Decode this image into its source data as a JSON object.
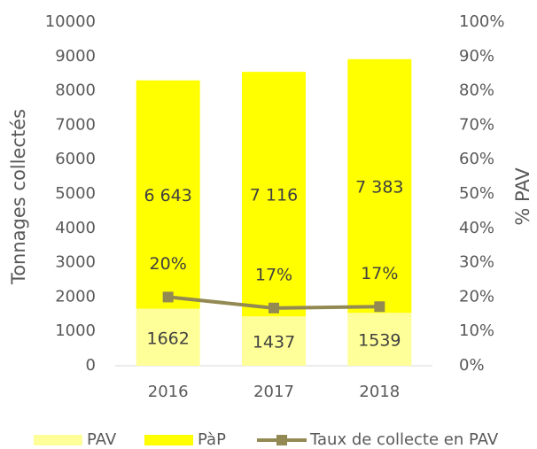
{
  "chart_data": {
    "type": "stacked_bar_line",
    "categories": [
      "2016",
      "2017",
      "2018"
    ],
    "series": [
      {
        "name": "PAV",
        "color": "#ffff99",
        "values": [
          1662,
          1437,
          1539
        ]
      },
      {
        "name": "PàP",
        "color": "#ffff00",
        "values": [
          6643,
          7116,
          7383
        ],
        "value_labels": [
          "6 643",
          "7 116",
          "7 383"
        ]
      },
      {
        "name": "Taux de collecte en PAV",
        "color": "#938953",
        "axis": "y2",
        "type": "line",
        "values": [
          20,
          16.8,
          17.2
        ],
        "value_labels": [
          "20%",
          "17%",
          "17%"
        ]
      }
    ],
    "ylabel": "Tonnages  collectés",
    "y2label": "% PAV",
    "ylim": [
      0,
      10000
    ],
    "yticks": [
      0,
      1000,
      2000,
      3000,
      4000,
      5000,
      6000,
      7000,
      8000,
      9000,
      10000
    ],
    "y2lim": [
      0,
      100
    ],
    "y2ticks": [
      {
        "value": 0,
        "label": "0%"
      },
      {
        "value": 10,
        "label": "10%"
      },
      {
        "value": 20,
        "label": "20%"
      },
      {
        "value": 30,
        "label": "30%"
      },
      {
        "value": 40,
        "label": "40%"
      },
      {
        "value": 50,
        "label": "50%"
      },
      {
        "value": 60,
        "label": "60%"
      },
      {
        "value": 70,
        "label": "70%"
      },
      {
        "value": 80,
        "label": "80%"
      },
      {
        "value": 90,
        "label": "90%"
      },
      {
        "value": 100,
        "label": "100%"
      }
    ],
    "legend": "bottom"
  }
}
